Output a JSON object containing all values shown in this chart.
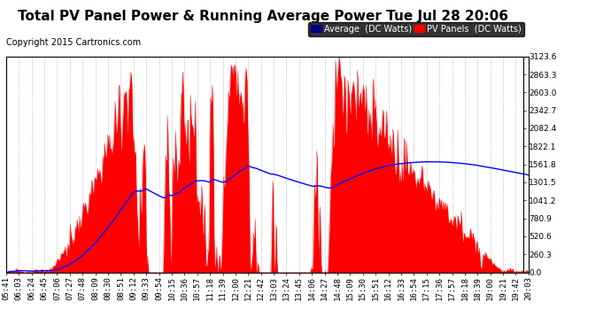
{
  "title": "Total PV Panel Power & Running Average Power Tue Jul 28 20:06",
  "copyright": "Copyright 2015 Cartronics.com",
  "ylabel_right_ticks": [
    0.0,
    260.3,
    520.6,
    780.9,
    1041.2,
    1301.5,
    1561.8,
    1822.1,
    2082.4,
    2342.7,
    2603.0,
    2863.3,
    3123.6
  ],
  "ymax": 3123.6,
  "ymin": 0.0,
  "pv_color": "#FF0000",
  "avg_color": "#0000FF",
  "bg_color": "#FFFFFF",
  "grid_color": "#888888",
  "legend_avg_bg": "#000080",
  "legend_pv_bg": "#FF0000",
  "legend_avg_text": "Average  (DC Watts)",
  "legend_pv_text": "PV Panels  (DC Watts)",
  "title_fontsize": 11,
  "copyright_fontsize": 7,
  "tick_fontsize": 6.5,
  "xtick_labels": [
    "05:41",
    "06:03",
    "06:24",
    "06:45",
    "07:06",
    "07:27",
    "07:48",
    "08:09",
    "08:30",
    "08:51",
    "09:12",
    "09:33",
    "09:54",
    "10:15",
    "10:36",
    "10:57",
    "11:18",
    "11:39",
    "12:00",
    "12:21",
    "12:42",
    "13:03",
    "13:24",
    "13:45",
    "14:06",
    "14:27",
    "14:48",
    "15:09",
    "15:30",
    "15:51",
    "16:12",
    "16:33",
    "16:54",
    "17:15",
    "17:36",
    "17:57",
    "18:18",
    "18:39",
    "19:00",
    "19:21",
    "19:42",
    "20:03"
  ],
  "num_points": 840
}
